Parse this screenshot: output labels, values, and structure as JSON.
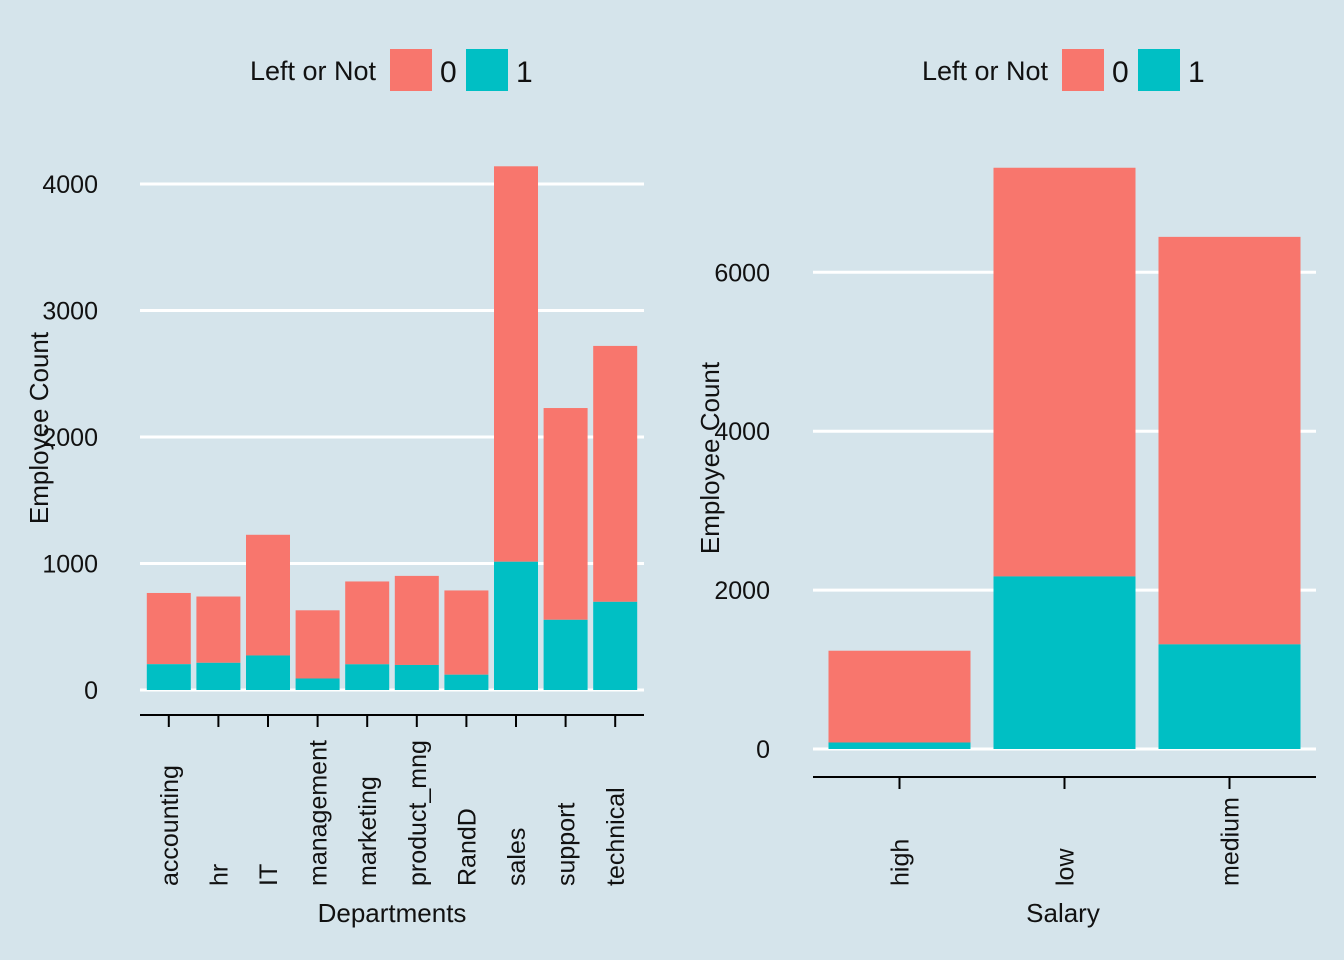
{
  "colors": {
    "background": "#d5e4eb",
    "stayed": "#f8766d",
    "left": "#00bfc4",
    "grid": "#ffffff",
    "axis": "#000000"
  },
  "chart_data": [
    {
      "type": "bar",
      "stacked": true,
      "legend": {
        "title": "Left or Not",
        "labels": [
          "0",
          "1"
        ],
        "position": "top"
      },
      "categories": [
        "accounting",
        "hr",
        "IT",
        "management",
        "marketing",
        "product_mng",
        "RandD",
        "sales",
        "support",
        "technical"
      ],
      "series": [
        {
          "name": "0",
          "values": [
            563,
            524,
            954,
            539,
            655,
            704,
            666,
            3126,
            1674,
            2023
          ]
        },
        {
          "name": "1",
          "values": [
            204,
            215,
            273,
            91,
            203,
            198,
            121,
            1014,
            555,
            697
          ]
        }
      ],
      "xlabel": "Departments",
      "ylabel": "Employee Count",
      "ylim": [
        -60,
        4350
      ],
      "yticks": [
        0,
        1000,
        2000,
        3000,
        4000
      ],
      "ytick_labels": [
        "0",
        "1000",
        "2000",
        "3000",
        "4000"
      ],
      "grid": "horizontal"
    },
    {
      "type": "bar",
      "stacked": true,
      "legend": {
        "title": "Left or Not",
        "labels": [
          "0",
          "1"
        ],
        "position": "top"
      },
      "categories": [
        "high",
        "low",
        "medium"
      ],
      "series": [
        {
          "name": "0",
          "values": [
            1155,
            5144,
            5129
          ]
        },
        {
          "name": "1",
          "values": [
            82,
            2172,
            1317
          ]
        }
      ],
      "xlabel": "Salary",
      "ylabel": "Employee Count",
      "ylim": [
        -50,
        7500
      ],
      "yticks": [
        0,
        2000,
        4000,
        6000
      ],
      "ytick_labels": [
        "0",
        "2000",
        "4000",
        "6000"
      ],
      "grid": "horizontal"
    }
  ]
}
